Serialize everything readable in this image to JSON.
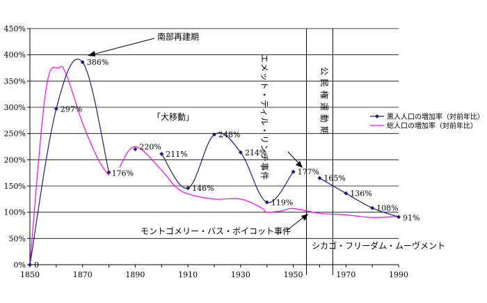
{
  "chart_data": {
    "type": "line",
    "xlim": [
      1850,
      1990
    ],
    "ylim": [
      0,
      450
    ],
    "x_ticks": [
      1850,
      1870,
      1890,
      1910,
      1930,
      1950,
      1970,
      1990
    ],
    "x_tick_labels": [
      "1850",
      "1870",
      "1890",
      "1910",
      "1930",
      "1950",
      "1970",
      "1990"
    ],
    "y_ticks": [
      0,
      50,
      100,
      150,
      200,
      250,
      300,
      350,
      400,
      450
    ],
    "y_tick_labels": [
      "0%",
      "50%",
      "100%",
      "150%",
      "200%",
      "250%",
      "300%",
      "350%",
      "400%",
      "450%"
    ],
    "grid": "horizontal",
    "legend_position": "right",
    "series": [
      {
        "name": "黒人人口の増加率（対前年比）",
        "color": "#1a1a80",
        "marker": "diamond",
        "segments": [
          [
            {
              "x": 1850,
              "y": 0,
              "label": "0"
            },
            {
              "x": 1860,
              "y": 297,
              "label": "297%"
            },
            {
              "x": 1870,
              "y": 386,
              "label": "386%"
            },
            {
              "x": 1880,
              "y": 176,
              "label": "176%"
            }
          ],
          [
            {
              "x": 1890,
              "y": 220,
              "label": "220%"
            }
          ],
          [
            {
              "x": 1900,
              "y": 211,
              "label": "211%"
            },
            {
              "x": 1910,
              "y": 146,
              "label": "146%"
            },
            {
              "x": 1920,
              "y": 248,
              "label": "248%"
            },
            {
              "x": 1930,
              "y": 214,
              "label": "214%"
            },
            {
              "x": 1940,
              "y": 119,
              "label": "119%"
            },
            {
              "x": 1950,
              "y": 177,
              "label": "177%"
            }
          ],
          [
            {
              "x": 1960,
              "y": 165,
              "label": "165%"
            },
            {
              "x": 1970,
              "y": 136,
              "label": "136%"
            },
            {
              "x": 1980,
              "y": 108,
              "label": "108%"
            },
            {
              "x": 1990,
              "y": 91,
              "label": "91%"
            }
          ]
        ]
      },
      {
        "name": "総人口の増加率（対前年比）",
        "color": "#ff00ff",
        "marker": "none",
        "segments": [
          [
            {
              "x": 1850,
              "y": 0
            },
            {
              "x": 1856,
              "y": 330
            },
            {
              "x": 1861,
              "y": 375
            },
            {
              "x": 1864,
              "y": 360
            },
            {
              "x": 1870,
              "y": 270
            },
            {
              "x": 1876,
              "y": 200
            },
            {
              "x": 1880,
              "y": 170
            }
          ],
          [
            {
              "x": 1884,
              "y": 185
            },
            {
              "x": 1890,
              "y": 225
            },
            {
              "x": 1900,
              "y": 180
            },
            {
              "x": 1905,
              "y": 150
            },
            {
              "x": 1910,
              "y": 135
            },
            {
              "x": 1920,
              "y": 125
            },
            {
              "x": 1930,
              "y": 125
            },
            {
              "x": 1938,
              "y": 108
            },
            {
              "x": 1940,
              "y": 100
            },
            {
              "x": 1946,
              "y": 103
            },
            {
              "x": 1950,
              "y": 107
            },
            {
              "x": 1960,
              "y": 98
            },
            {
              "x": 1970,
              "y": 95
            },
            {
              "x": 1980,
              "y": 90
            },
            {
              "x": 1990,
              "y": 92
            }
          ]
        ]
      }
    ],
    "vertical_lines": [
      1955,
      1965
    ],
    "annotations": {
      "nanbu_saiken": "南部再建期",
      "dai_idou": "「大移動」",
      "emmett_till": "エメット・ティル・リンチ事件",
      "koumin_ken": "公民権運動期",
      "montgomery": "モントゴメリー・バス・ボイコット事件",
      "chicago": "シカゴ・フリーダム・ムーヴメント"
    }
  }
}
